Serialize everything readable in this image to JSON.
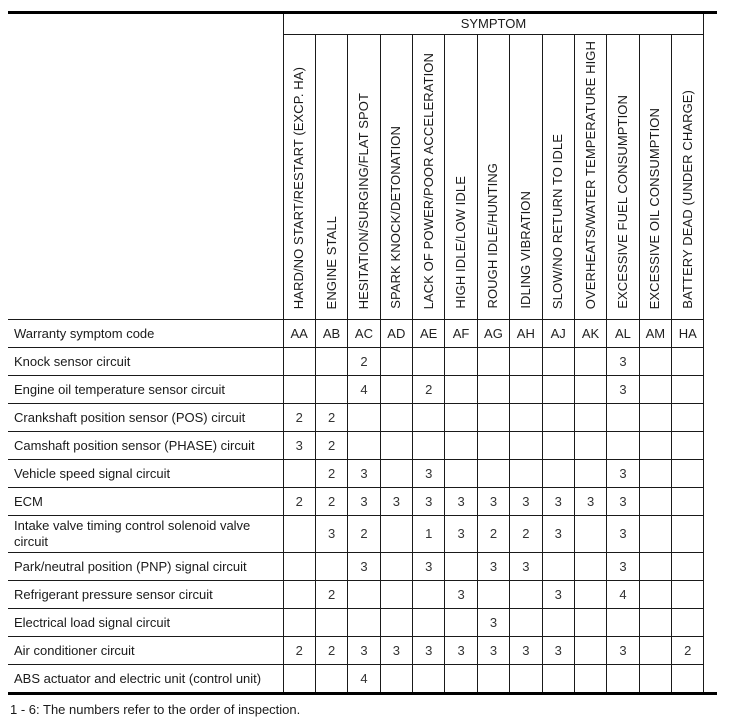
{
  "header": {
    "symptom_title": "SYMPTOM"
  },
  "symptom_columns": [
    {
      "label": "HARD/NO START/RESTART (EXCP. HA)",
      "code": "AA"
    },
    {
      "label": "ENGINE STALL",
      "code": "AB"
    },
    {
      "label": "HESITATION/SURGING/FLAT SPOT",
      "code": "AC"
    },
    {
      "label": "SPARK KNOCK/DETONATION",
      "code": "AD"
    },
    {
      "label": "LACK OF POWER/POOR ACCELERATION",
      "code": "AE"
    },
    {
      "label": "HIGH IDLE/LOW IDLE",
      "code": "AF"
    },
    {
      "label": "ROUGH IDLE/HUNTING",
      "code": "AG"
    },
    {
      "label": "IDLING VIBRATION",
      "code": "AH"
    },
    {
      "label": "SLOW/NO RETURN TO IDLE",
      "code": "AJ"
    },
    {
      "label": "OVERHEATS/WATER TEMPERATURE HIGH",
      "code": "AK"
    },
    {
      "label": "EXCESSIVE FUEL CONSUMPTION",
      "code": "AL"
    },
    {
      "label": "EXCESSIVE OIL CONSUMPTION",
      "code": "AM"
    },
    {
      "label": "BATTERY DEAD (UNDER CHARGE)",
      "code": "HA"
    }
  ],
  "code_row_label": "Warranty symptom code",
  "rows": [
    {
      "label": "Knock sensor circuit",
      "values": [
        "",
        "",
        "2",
        "",
        "",
        "",
        "",
        "",
        "",
        "",
        "3",
        "",
        ""
      ]
    },
    {
      "label": "Engine oil temperature sensor circuit",
      "values": [
        "",
        "",
        "4",
        "",
        "2",
        "",
        "",
        "",
        "",
        "",
        "3",
        "",
        ""
      ]
    },
    {
      "label": "Crankshaft position sensor (POS) circuit",
      "values": [
        "2",
        "2",
        "",
        "",
        "",
        "",
        "",
        "",
        "",
        "",
        "",
        "",
        ""
      ]
    },
    {
      "label": "Camshaft position sensor (PHASE) circuit",
      "values": [
        "3",
        "2",
        "",
        "",
        "",
        "",
        "",
        "",
        "",
        "",
        "",
        "",
        ""
      ]
    },
    {
      "label": "Vehicle speed signal circuit",
      "values": [
        "",
        "2",
        "3",
        "",
        "3",
        "",
        "",
        "",
        "",
        "",
        "3",
        "",
        ""
      ]
    },
    {
      "label": "ECM",
      "values": [
        "2",
        "2",
        "3",
        "3",
        "3",
        "3",
        "3",
        "3",
        "3",
        "3",
        "3",
        "",
        ""
      ]
    },
    {
      "label": "Intake valve timing control solenoid valve circuit",
      "values": [
        "",
        "3",
        "2",
        "",
        "1",
        "3",
        "2",
        "2",
        "3",
        "",
        "3",
        "",
        ""
      ]
    },
    {
      "label": "Park/neutral position (PNP) signal circuit",
      "values": [
        "",
        "",
        "3",
        "",
        "3",
        "",
        "3",
        "3",
        "",
        "",
        "3",
        "",
        ""
      ]
    },
    {
      "label": "Refrigerant pressure sensor circuit",
      "values": [
        "",
        "2",
        "",
        "",
        "",
        "3",
        "",
        "",
        "3",
        "",
        "4",
        "",
        ""
      ]
    },
    {
      "label": "Electrical load signal circuit",
      "values": [
        "",
        "",
        "",
        "",
        "",
        "",
        "3",
        "",
        "",
        "",
        "",
        "",
        ""
      ]
    },
    {
      "label": "Air conditioner circuit",
      "values": [
        "2",
        "2",
        "3",
        "3",
        "3",
        "3",
        "3",
        "3",
        "3",
        "",
        "3",
        "",
        "2"
      ]
    },
    {
      "label": "ABS actuator and electric unit (control unit)",
      "values": [
        "",
        "",
        "4",
        "",
        "",
        "",
        "",
        "",
        "",
        "",
        "",
        "",
        ""
      ]
    }
  ],
  "footnote": "1 - 6: The numbers refer to the order of inspection.",
  "colors": {
    "thin_border": "#1a1a1a",
    "thick_border": "#000000",
    "text": "#1a1a1a",
    "value_text": "#333333",
    "background": "#ffffff"
  }
}
